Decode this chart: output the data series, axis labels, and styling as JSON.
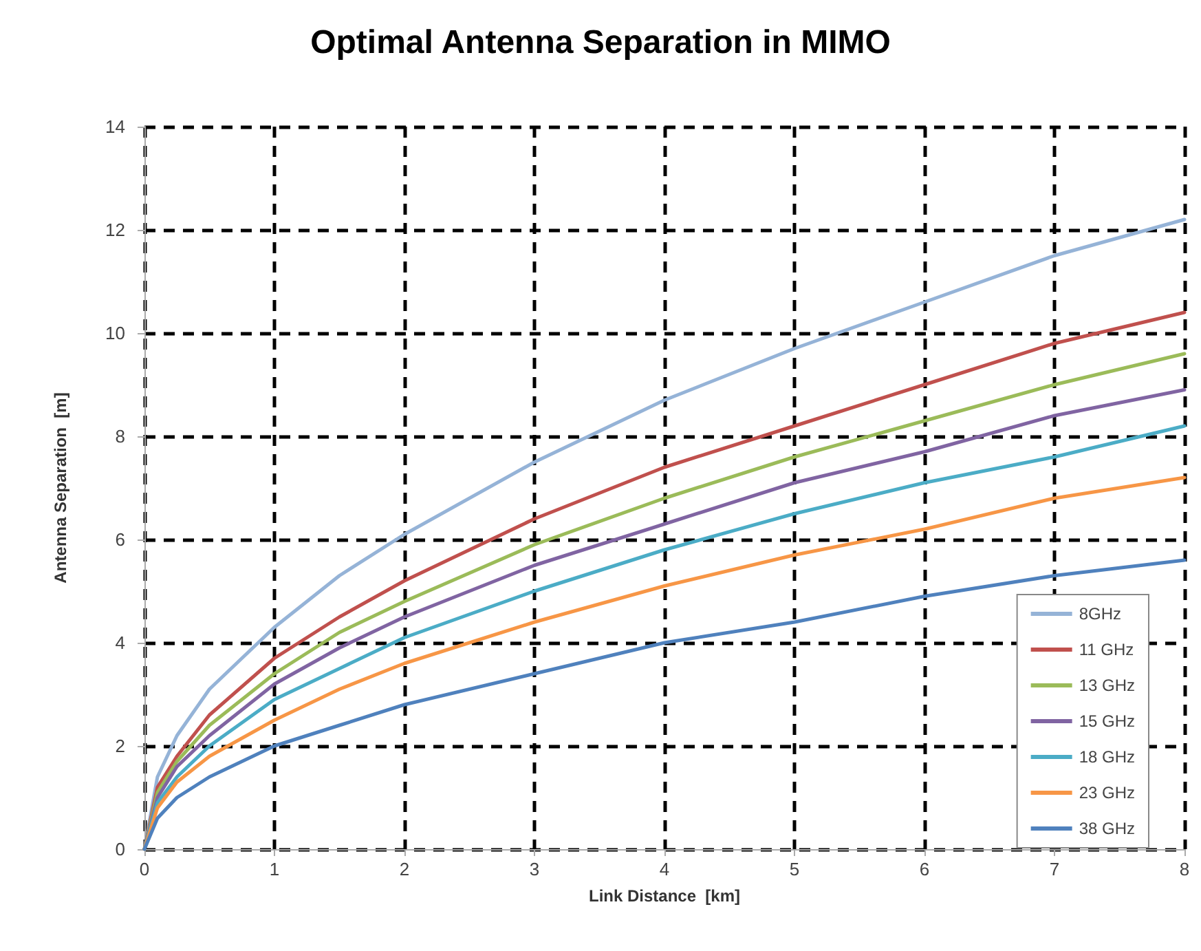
{
  "chart_data": {
    "type": "line",
    "title": "Optimal Antenna Separation in MIMO",
    "xlabel": "Link Distance  [km]",
    "ylabel": "Antenna Separation  [m]",
    "x": [
      0,
      0.1,
      0.25,
      0.5,
      1,
      1.5,
      2,
      3,
      4,
      5,
      6,
      7,
      8
    ],
    "series": [
      {
        "name": "8GHz",
        "color": "#95b3d7",
        "values": [
          0,
          1.4,
          2.2,
          3.1,
          4.3,
          5.3,
          6.1,
          7.5,
          8.7,
          9.7,
          10.6,
          11.5,
          12.2
        ]
      },
      {
        "name": "11 GHz",
        "color": "#c0504d",
        "values": [
          0,
          1.2,
          1.8,
          2.6,
          3.7,
          4.5,
          5.2,
          6.4,
          7.4,
          8.2,
          9.0,
          9.8,
          10.4
        ]
      },
      {
        "name": "13 GHz",
        "color": "#9bbb59",
        "values": [
          0,
          1.1,
          1.7,
          2.4,
          3.4,
          4.2,
          4.8,
          5.9,
          6.8,
          7.6,
          8.3,
          9.0,
          9.6
        ]
      },
      {
        "name": "15 GHz",
        "color": "#8064a2",
        "values": [
          0,
          1.0,
          1.6,
          2.2,
          3.2,
          3.9,
          4.5,
          5.5,
          6.3,
          7.1,
          7.7,
          8.4,
          8.9
        ]
      },
      {
        "name": "18 GHz",
        "color": "#4bacc6",
        "values": [
          0,
          0.9,
          1.4,
          2.0,
          2.9,
          3.5,
          4.1,
          5.0,
          5.8,
          6.5,
          7.1,
          7.6,
          8.2
        ]
      },
      {
        "name": "23 GHz",
        "color": "#f79646",
        "values": [
          0,
          0.8,
          1.3,
          1.8,
          2.5,
          3.1,
          3.6,
          4.4,
          5.1,
          5.7,
          6.2,
          6.8,
          7.2
        ]
      },
      {
        "name": "38 GHz",
        "color": "#4f81bd",
        "values": [
          0,
          0.6,
          1.0,
          1.4,
          2.0,
          2.4,
          2.8,
          3.4,
          4.0,
          4.4,
          4.9,
          5.3,
          5.6
        ]
      }
    ],
    "xlim": [
      0,
      8
    ],
    "xticks": [
      0,
      1,
      2,
      3,
      4,
      5,
      6,
      7,
      8
    ],
    "ylim": [
      0,
      14
    ],
    "yticks": [
      0,
      2,
      4,
      6,
      8,
      10,
      12,
      14
    ],
    "grid": true,
    "legend": "bottom right",
    "marker": "none",
    "line_style": "solid"
  }
}
